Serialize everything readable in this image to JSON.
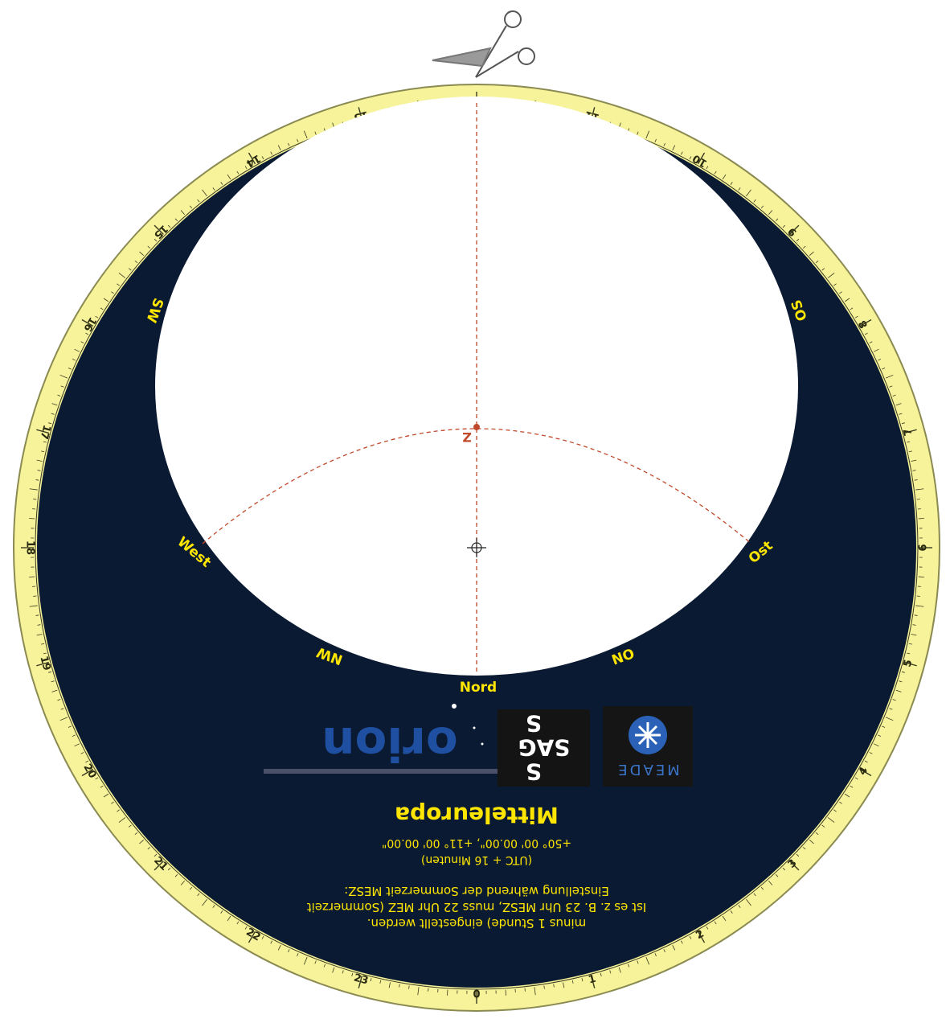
{
  "colors": {
    "disk": "#0b1a33",
    "ring": "#f6f39a",
    "ring_edge": "#8a8a52",
    "label": "#ffe600",
    "tick": "#3a3a20",
    "dashed": "#c0492b",
    "background": "#ffffff"
  },
  "hour_labels": [
    "12",
    "11",
    "10",
    "9",
    "8",
    "7",
    "6",
    "5",
    "4",
    "3",
    "2",
    "1",
    "0",
    "23",
    "22",
    "21",
    "20",
    "19",
    "18",
    "17",
    "16",
    "15",
    "14",
    "13"
  ],
  "directions": {
    "west": "West",
    "ost": "Ost",
    "nord": "Nord",
    "sw": "SW",
    "os": "OS",
    "nw": "NW",
    "on": "ON"
  },
  "zenith_label": "Z",
  "title": "Mitteleuropa",
  "coords": "+50° 00' 00.00\", +11° 00' 00.00\"",
  "utc_note": "(UTC + 16 Minuten)",
  "summer_lines": [
    "Einstellung während der Sommerzeit MESZ:",
    "Ist es z. B. 23 Uhr MESZ, muss 22 Uhr MEZ (Sommerzeit",
    "minus 1 Stunde) eingestellt werden."
  ],
  "logos": {
    "orion": "orion",
    "sas_top": "S",
    "sas_mid": "SAG",
    "sas_bottom": "S",
    "meade": "MEADE"
  },
  "icons": [
    "scissors-icon",
    "crosshair-icon",
    "meade-star-icon"
  ]
}
